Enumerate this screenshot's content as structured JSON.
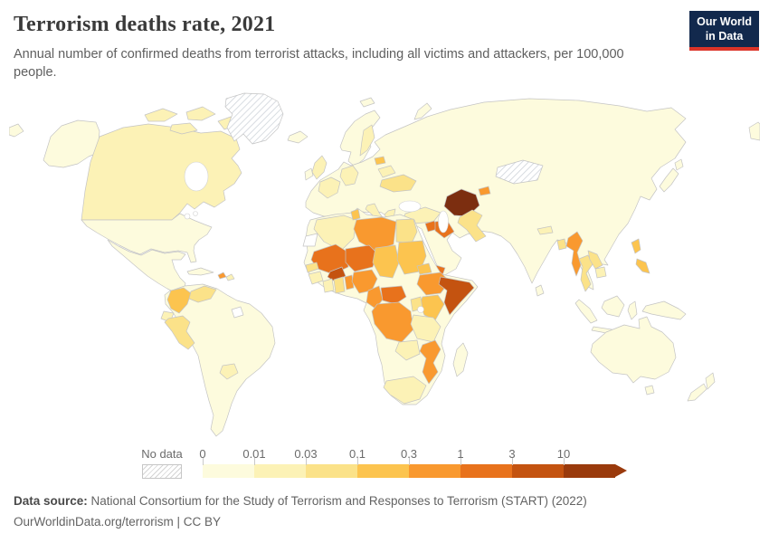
{
  "header": {
    "title": "Terrorism deaths rate, 2021",
    "subtitle": "Annual number of confirmed deaths from terrorist attacks, including all victims and attackers, per 100,000 people."
  },
  "logo": {
    "line1": "Our World",
    "line2": "in Data",
    "bg_color": "#12294d",
    "accent_color": "#dc3428"
  },
  "legend": {
    "no_data_label": "No data"
  },
  "footer": {
    "source_label": "Data source:",
    "source_text": "National Consortium for the Study of Terrorism and Responses to Terrorism (START) (2022)",
    "link_line": "OurWorldinData.org/terrorism | CC BY"
  },
  "chart_data": {
    "type": "choropleth",
    "title": "Terrorism deaths rate, 2021",
    "unit": "deaths per 100,000 people",
    "year": "2021",
    "scale_tick_labels": [
      "0",
      "0.01",
      "0.03",
      "0.1",
      "0.3",
      "1",
      "3",
      "10"
    ],
    "bucket_labels": [
      "0-0.01",
      "0.01-0.03",
      "0.03-0.1",
      "0.1-0.3",
      "0.3-1",
      "1-3",
      "3-10",
      "10+"
    ],
    "scale_colors": [
      "#fdfbdd",
      "#fcf2b6",
      "#fbe289",
      "#fcc44f",
      "#f9992f",
      "#e8721c",
      "#c45310",
      "#9a3a0c"
    ],
    "over_max_color": "#7c2e10",
    "no_data_style": "hatched",
    "border_color": "#c4c4c4",
    "regions": {
      "afghanistan": "over-max",
      "greenland": "no-data",
      "mongolia": "no-data",
      "western-sahara": "blank",
      "french-guiana": "blank",
      "canada": 1,
      "arctic-islands": 1,
      "haiti": 4,
      "dominican-republic": 1,
      "guatemala": 1,
      "nicaragua": 1,
      "panama": 1,
      "colombia": 3,
      "venezuela": 2,
      "ecuador": 1,
      "peru": 2,
      "paraguay": 1,
      "united-kingdom": 1,
      "sweden": 1,
      "france": 1,
      "germany": 1,
      "italy": 1,
      "sicily": 1,
      "greece": 1,
      "ukraine": 2,
      "belarus": 1,
      "baltic-states": 3,
      "turkey": 1,
      "syria": 5,
      "iraq": 5,
      "pakistan": 2,
      "tajikistan": 4,
      "yemen": 5,
      "myanmar": 4,
      "thailand": 2,
      "laos": 2,
      "cambodia": 1,
      "bangladesh": 2,
      "nepal": 1,
      "philippines-north": 3,
      "philippines-south": 3,
      "algeria": 1,
      "libya": 4,
      "egypt": 2,
      "tunisia": 3,
      "mali": 5,
      "niger": 5,
      "chad": 3,
      "sudan": 3,
      "senegal": 2,
      "guinea": 1,
      "burkina-faso": 6,
      "ivory-coast": 1,
      "ghana": 2,
      "togo-benin": 4,
      "nigeria": 4,
      "cameroon": 4,
      "central-african-republic": 5,
      "ethiopia": 4,
      "eritrea": 3,
      "somalia": 6,
      "kenya": 3,
      "uganda": 2,
      "drc": 4,
      "tanzania": 1,
      "mozambique": 4,
      "zambia": 1,
      "south-africa": 1
    }
  }
}
